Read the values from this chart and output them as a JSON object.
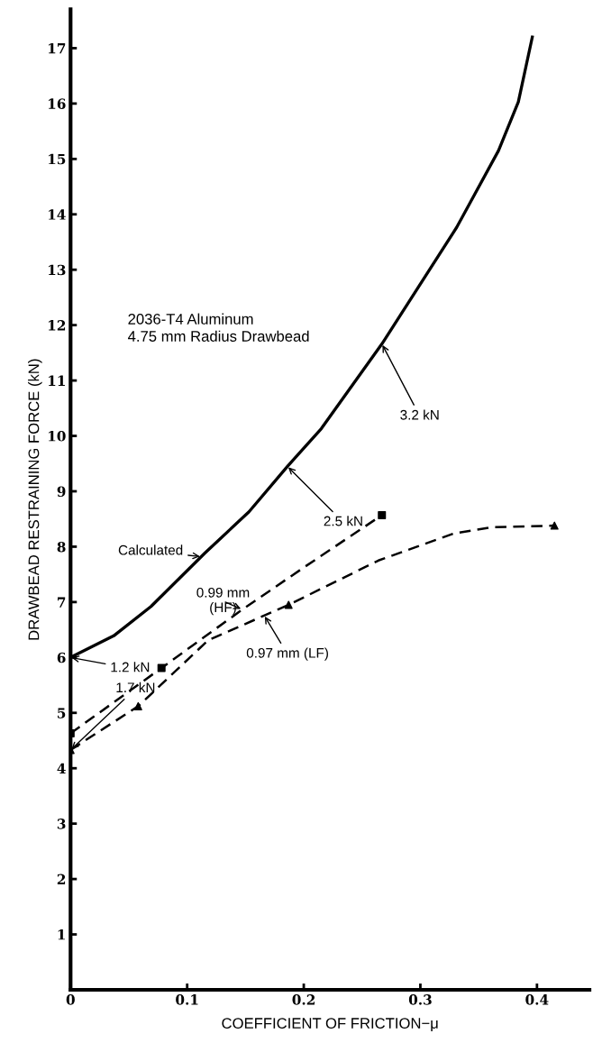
{
  "chart_data": {
    "type": "line",
    "xlabel": "COEFFICIENT OF FRICTION−μ",
    "ylabel": "DRAWBEAD RESTRAINING FORCE (kN)",
    "xlim": [
      0,
      0.445
    ],
    "ylim": [
      0,
      17.7
    ],
    "xticks": [
      0,
      0.1,
      0.2,
      0.3,
      0.4
    ],
    "yticks": [
      1,
      2,
      3,
      4,
      5,
      6,
      7,
      8,
      9,
      10,
      11,
      12,
      13,
      14,
      15,
      16,
      17
    ],
    "grid": false,
    "legend": false,
    "series": [
      {
        "color": "#000000",
        "line_style": "solid",
        "marker": "none",
        "x": [
          0,
          0.037,
          0.069,
          0.115,
          0.153,
          0.186,
          0.215,
          0.267,
          0.331,
          0.367,
          0.384,
          0.396
        ],
        "values": [
          6.0,
          6.39,
          6.92,
          7.88,
          8.63,
          9.45,
          10.13,
          11.66,
          13.76,
          15.15,
          16.03,
          17.2
        ]
      },
      {
        "color": "#000000",
        "line_style": "dashed",
        "marker": "none",
        "x": [
          0,
          0.078,
          0.147,
          0.199,
          0.267
        ],
        "values": [
          4.63,
          5.81,
          6.86,
          7.61,
          8.57
        ]
      },
      {
        "color": "#000000",
        "line_style": "dashed",
        "marker": "none",
        "x": [
          0,
          0.058,
          0.118,
          0.187,
          0.264,
          0.329,
          0.361,
          0.415
        ],
        "values": [
          4.33,
          5.12,
          6.31,
          6.95,
          7.75,
          8.24,
          8.35,
          8.38
        ]
      },
      {
        "type": "scatter",
        "color": "#000000",
        "marker": "square",
        "x": [
          0,
          0.078,
          0.267
        ],
        "values": [
          4.63,
          5.81,
          8.57
        ]
      },
      {
        "type": "scatter",
        "color": "#000000",
        "marker": "triangle",
        "x": [
          0,
          0.058,
          0.187,
          0.415
        ],
        "values": [
          4.33,
          5.12,
          6.95,
          8.38
        ]
      }
    ],
    "annotations": [
      "2036-T4 Aluminum\n4.75 mm Radius Drawbead",
      {
        "text": "Calculated",
        "x": 0.112,
        "y": 7.82
      },
      {
        "text": "0.99 mm\n(HF)",
        "x": 0.147,
        "y": 6.87
      },
      {
        "text": "0.97 mm (LF)",
        "x": 0.166,
        "y": 6.76
      },
      {
        "text": "3.2 kN",
        "x": 0.267,
        "y": 11.66
      },
      {
        "text": "2.5 kN",
        "x": 0.186,
        "y": 9.45
      },
      {
        "text": "1.2 kN",
        "x": 0,
        "y": 6.0
      },
      {
        "text": "1.7 kN",
        "x": 0,
        "y": 4.33
      }
    ]
  }
}
